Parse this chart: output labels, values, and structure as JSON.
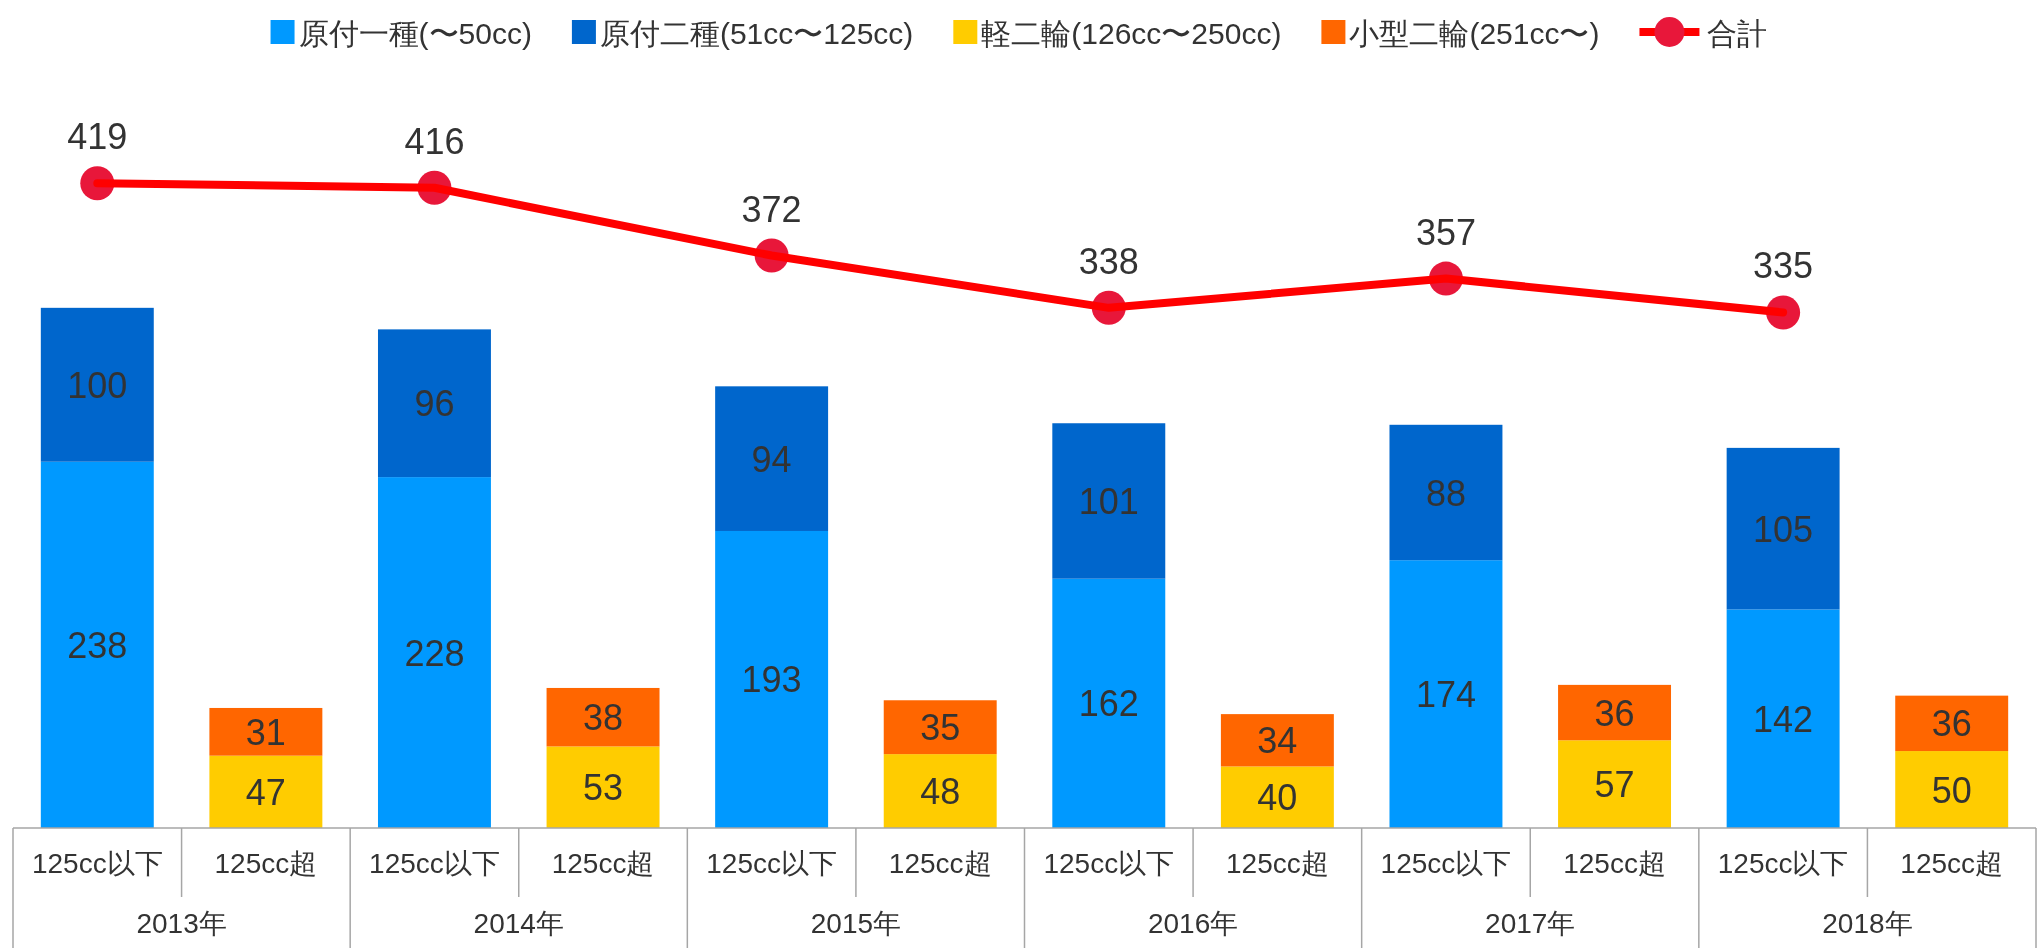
{
  "chart_data": {
    "type": "bar",
    "stacked": true,
    "data_labels": true,
    "legend": "top",
    "marker": "circle",
    "categories": [
      "125cc以下",
      "125cc超",
      "125cc以下",
      "125cc超",
      "125cc以下",
      "125cc超",
      "125cc以下",
      "125cc超",
      "125cc以下",
      "125cc超",
      "125cc以下",
      "125cc超"
    ],
    "annotations": [
      "2013年",
      "2014年",
      "2015年",
      "2016年",
      "2017年",
      "2018年"
    ],
    "series": [
      {
        "name": "原付一種(〜50cc)",
        "color": "#0099ff",
        "values": [
          238,
          null,
          228,
          null,
          193,
          null,
          162,
          null,
          174,
          null,
          142,
          null
        ]
      },
      {
        "name": "原付二種(51cc〜125cc)",
        "color": "#0066cc",
        "values": [
          100,
          null,
          96,
          null,
          94,
          null,
          101,
          null,
          88,
          null,
          105,
          null
        ]
      },
      {
        "name": "軽二輪(126cc〜250cc)",
        "color": "#ffcc00",
        "values": [
          null,
          47,
          null,
          53,
          null,
          48,
          null,
          40,
          null,
          57,
          null,
          50
        ]
      },
      {
        "name": "小型二輪(251cc〜)",
        "color": "#ff6600",
        "values": [
          null,
          31,
          null,
          38,
          null,
          35,
          null,
          34,
          null,
          36,
          null,
          36
        ]
      },
      {
        "name": "合計",
        "type": "line",
        "color": "#ff0000",
        "values": [
          419,
          null,
          416,
          null,
          372,
          null,
          338,
          null,
          357,
          null,
          335,
          null
        ]
      }
    ]
  }
}
